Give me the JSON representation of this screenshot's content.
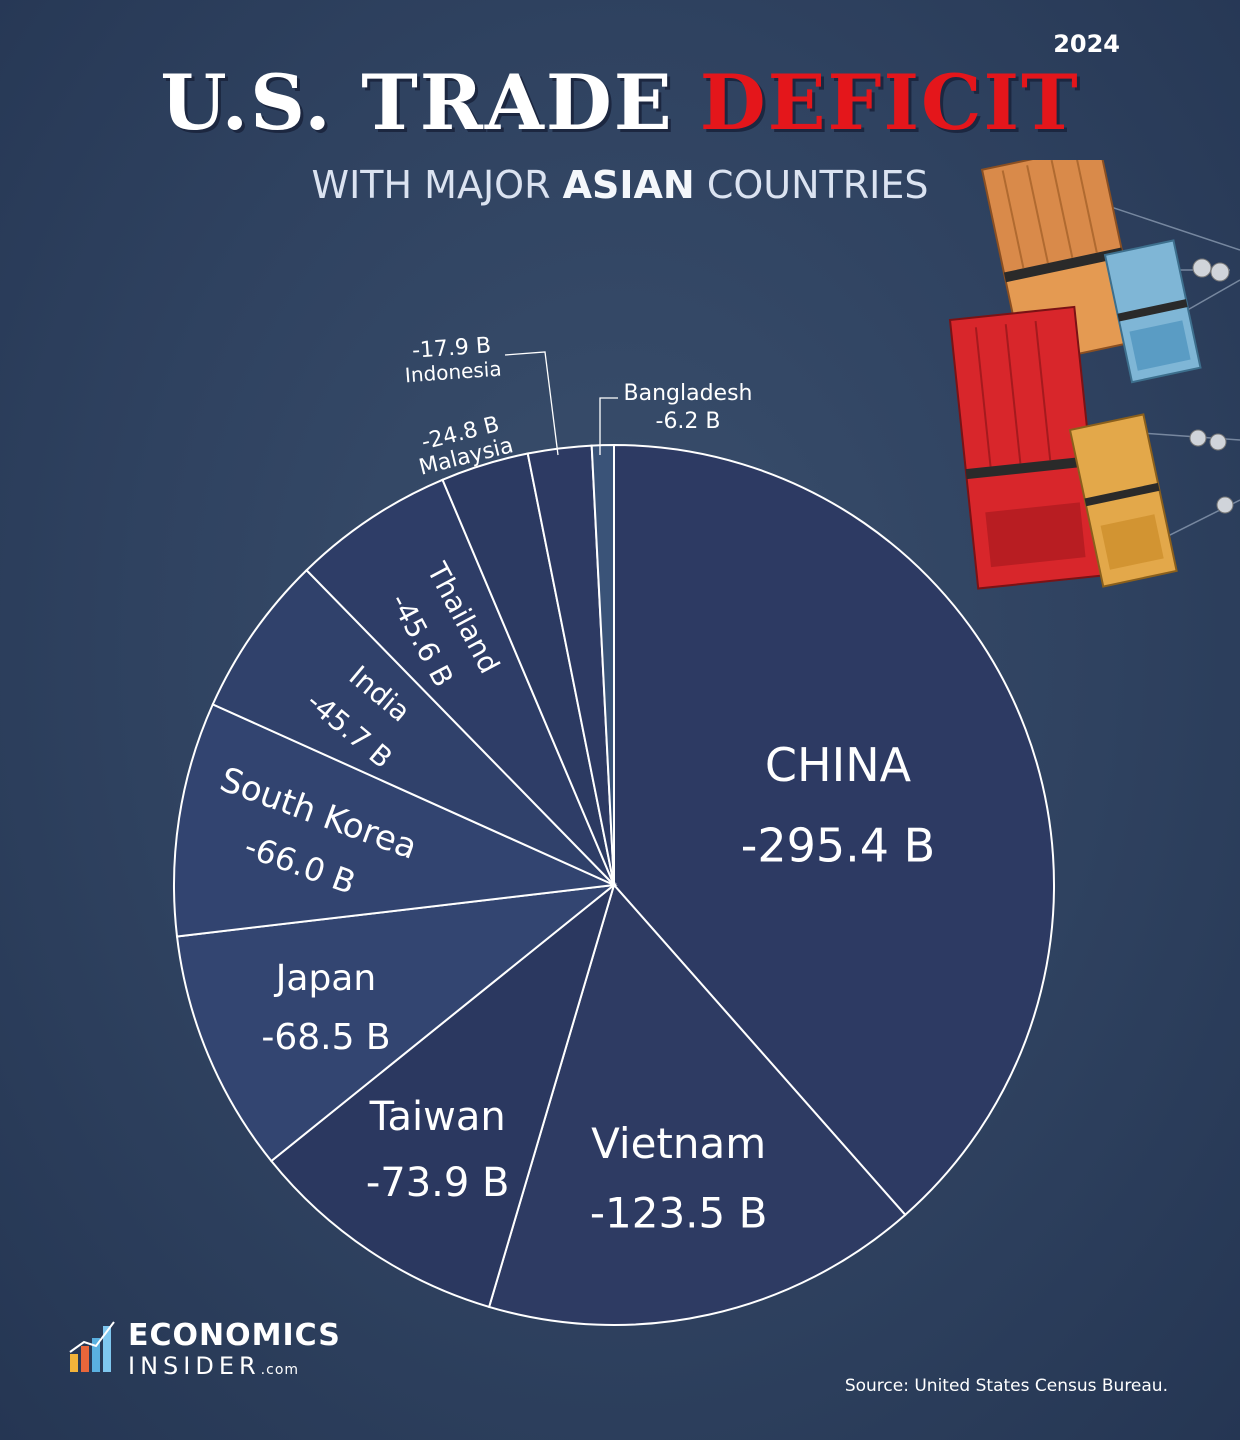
{
  "header": {
    "year": "2024",
    "title_part1": "U.S. TRADE",
    "title_part2": "DEFICIT",
    "subtitle_part1": "WITH MAJOR",
    "subtitle_part2": "ASIAN",
    "subtitle_part3": "COUNTRIES"
  },
  "chart_data": {
    "type": "pie",
    "title": "U.S. TRADE DEFICIT",
    "subtitle": "WITH MAJOR ASIAN COUNTRIES",
    "unit": "B",
    "slices": [
      {
        "label": "CHINA",
        "value": -295.4,
        "value_label": "-295.4 B"
      },
      {
        "label": "Vietnam",
        "value": -123.5,
        "value_label": "-123.5 B"
      },
      {
        "label": "Taiwan",
        "value": -73.9,
        "value_label": "-73.9 B"
      },
      {
        "label": "Japan",
        "value": -68.5,
        "value_label": "-68.5 B"
      },
      {
        "label": "South Korea",
        "value": -66.0,
        "value_label": "-66.0 B"
      },
      {
        "label": "India",
        "value": -45.7,
        "value_label": "-45.7 B"
      },
      {
        "label": "Thailand",
        "value": -45.6,
        "value_label": "-45.6 B"
      },
      {
        "label": "Malaysia",
        "value": -24.8,
        "value_label": "-24.8 B"
      },
      {
        "label": "Indonesia",
        "value": -17.9,
        "value_label": "-17.9 B"
      },
      {
        "label": "Bangladesh",
        "value": -6.2,
        "value_label": "-6.2 B"
      }
    ],
    "colors": {
      "slice_fill": "#2c3a63",
      "slice_stroke": "#ffffff",
      "title_red": "#e4161b"
    }
  },
  "footer": {
    "logo_line1": "ECONOMICS",
    "logo_line2": "INSIDER",
    "logo_suffix": ".com",
    "source": "Source: United States Census Bureau."
  }
}
